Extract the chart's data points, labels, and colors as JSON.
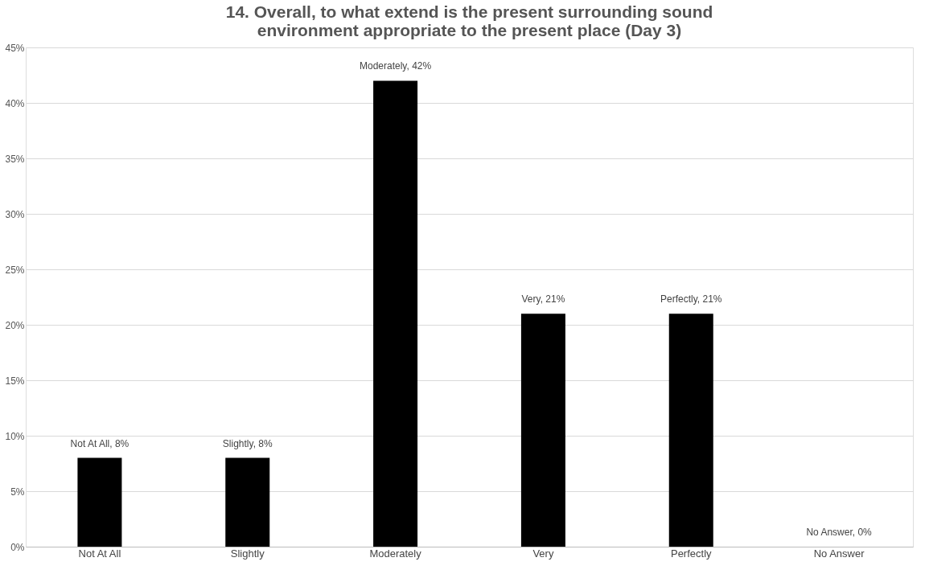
{
  "chart_data": {
    "type": "bar",
    "title": "14. Overall, to what extend is the present surrounding sound environment appropriate to the present place (Day 3)",
    "categories": [
      "Not At All",
      "Slightly",
      "Moderately",
      "Very",
      "Perfectly",
      "No Answer"
    ],
    "values": [
      8,
      8,
      42,
      21,
      21,
      0
    ],
    "value_labels": [
      "Not At All, 8%",
      "Slightly, 8%",
      "Moderately, 42%",
      "Very, 21%",
      "Perfectly, 21%",
      "No Answer, 0%"
    ],
    "color": "#000000",
    "ylim": [
      0,
      45
    ],
    "yticks": [
      {
        "value": 0,
        "label": "0%"
      },
      {
        "value": 5,
        "label": "5%"
      },
      {
        "value": 10,
        "label": "10%"
      },
      {
        "value": 15,
        "label": "15%"
      },
      {
        "value": 20,
        "label": "20%"
      },
      {
        "value": 25,
        "label": "25%"
      },
      {
        "value": 30,
        "label": "30%"
      },
      {
        "value": 35,
        "label": "35%"
      },
      {
        "value": 40,
        "label": "40%"
      },
      {
        "value": 45,
        "label": "45%"
      }
    ],
    "grid": "y"
  }
}
